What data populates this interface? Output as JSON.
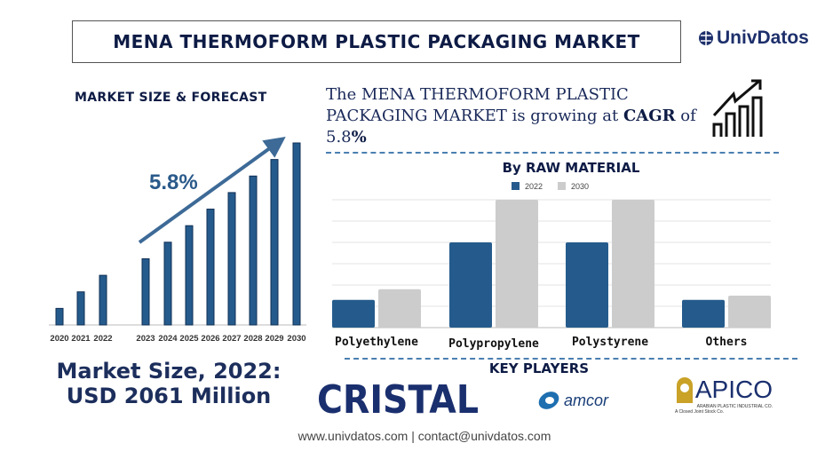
{
  "header": {
    "title": "MENA THERMOFORM PLASTIC PACKAGING MARKET",
    "brand": "UnivDatos"
  },
  "left": {
    "heading": "MARKET SIZE & FORECAST",
    "cagr_label": "5.8%",
    "market_size_line1": "Market Size, 2022:",
    "market_size_line2": "USD 2061 Million"
  },
  "summary": {
    "part1": "The MENA THERMOFORM PLASTIC PACKAGING MARKET is growing at ",
    "cagr_word": "CAGR",
    "part2": " of ",
    "value": "5.8",
    "percent": "%"
  },
  "key_players": {
    "heading": "KEY PLAYERS",
    "logos": [
      "CRISTAL",
      "amcor",
      "APICO"
    ],
    "apico_sub": "ARABIAN PLASTIC INDUSTRIAL CO.",
    "apico_sub2": "A Closed Joint Stock Co."
  },
  "footer": {
    "text": "www.univdatos.com | contact@univdatos.com"
  },
  "colors": {
    "navy": "#0d1b45",
    "bar_blue": "#255b8c",
    "bar_gray": "#cccccc",
    "accent": "#2a5a8a"
  },
  "chart_data": [
    {
      "type": "bar",
      "categories": [
        "2020",
        "2021",
        "2022",
        "2023",
        "2024",
        "2025",
        "2026",
        "2027",
        "2028",
        "2029",
        "2030"
      ],
      "values": [
        1,
        2,
        3,
        4,
        5,
        6,
        7,
        8,
        9,
        10,
        11
      ],
      "annotation": "5.8%",
      "grid": false
    },
    {
      "type": "bar",
      "title": "By RAW MATERIAL",
      "categories": [
        "Polyethylene",
        "Polypropylene",
        "Polystyrene",
        "Others"
      ],
      "series": [
        {
          "name": "2022",
          "values": [
            1.3,
            4,
            4,
            1.3
          ]
        },
        {
          "name": "2030",
          "values": [
            1.8,
            6,
            6,
            1.5
          ]
        }
      ],
      "ylim": [
        0,
        6
      ],
      "grid": true,
      "legend": "top"
    }
  ]
}
